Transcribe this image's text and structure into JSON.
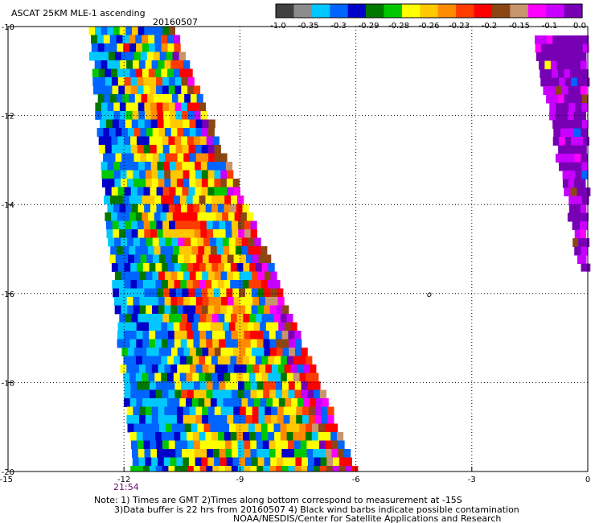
{
  "header": {
    "title": "ASCAT 25KM MLE-1 ascending",
    "date": "20160507"
  },
  "time_label": "21:54",
  "notes": {
    "line1": "Note: 1) Times are GMT 2)Times along bottom correspond to measurement at -15S",
    "line2": "3)Data buffer is 22 hrs from 20160507 4) Black wind barbs indicate possible contamination",
    "line3": "NOAA/NESDIS/Center for Satellite Applications and Research"
  },
  "colorbar": {
    "colors": [
      "#404040",
      "#8c8c8c",
      "#00c8ff",
      "#0064ff",
      "#0000c8",
      "#007800",
      "#00c800",
      "#ffff00",
      "#ffc800",
      "#ff8c00",
      "#ff3c00",
      "#ff0000",
      "#8c4614",
      "#c8966e",
      "#ff00ff",
      "#c800ff",
      "#7800b4"
    ],
    "labels": [
      "-1.0",
      "-0.35",
      "-0.3",
      "-0.29",
      "-0.28",
      "-0.26",
      "-0.23",
      "-0.2",
      "-0.15",
      "-0.1",
      "0.0"
    ]
  },
  "chart_data": {
    "type": "heatmap",
    "title": "ASCAT 25KM MLE-1 ascending",
    "xlim": [
      -15,
      0
    ],
    "ylim": [
      -20,
      -10
    ],
    "x_ticks": [
      "-15",
      "-12",
      "-9",
      "-6",
      "-3",
      "0"
    ],
    "y_ticks": [
      "-10",
      "-12",
      "-14",
      "-16",
      "-18",
      "-20"
    ],
    "annotations": [
      "o"
    ],
    "grid": true,
    "swaths": [
      {
        "name": "main",
        "lon_left_top": -12.9,
        "lon_right_top": -10.7,
        "lon_left_bottom": -11.8,
        "lon_right_bottom": -6.0,
        "lat_top": -10,
        "lat_bottom": -20
      },
      {
        "name": "east",
        "lon_left_top": -1.4,
        "lon_right_top": 0,
        "lon_left_bottom": -0.2,
        "lon_right_bottom": 0,
        "lat_top": -10.2,
        "lat_bottom": -15.5
      }
    ]
  }
}
